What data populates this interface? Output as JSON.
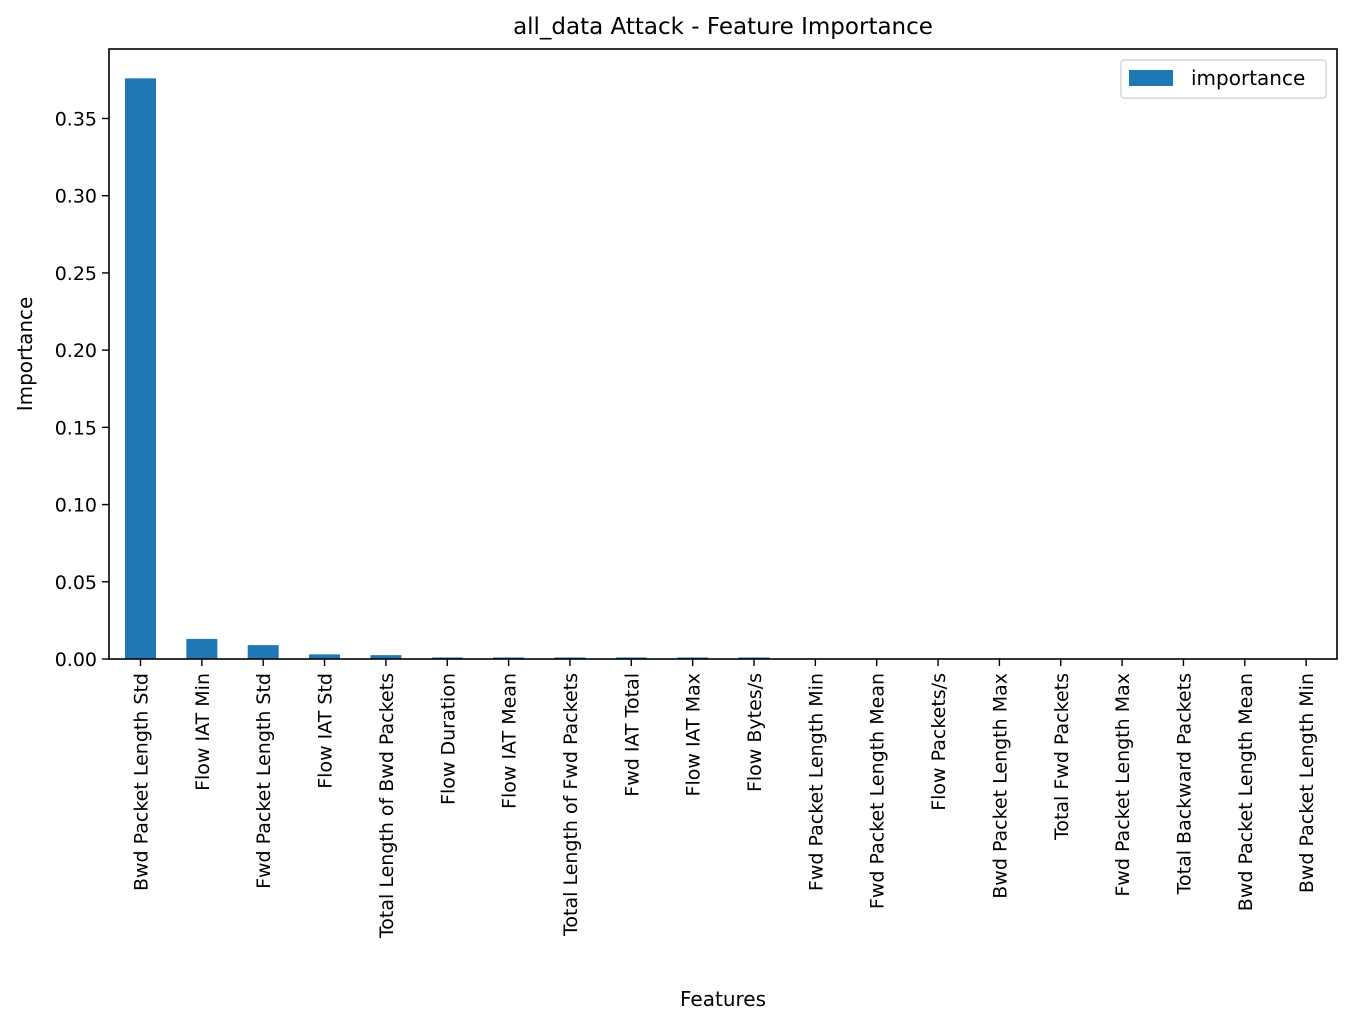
{
  "chart_data": {
    "type": "bar",
    "title": "all_data Attack - Feature Importance",
    "xlabel": "Features",
    "ylabel": "Importance",
    "ylim": [
      0,
      0.395
    ],
    "yticks": [
      0.0,
      0.05,
      0.1,
      0.15,
      0.2,
      0.25,
      0.3,
      0.35
    ],
    "ytick_labels": [
      "0.00",
      "0.05",
      "0.10",
      "0.15",
      "0.20",
      "0.25",
      "0.30",
      "0.35"
    ],
    "grid": false,
    "legend_position": "top-right",
    "bar_color": "#1f77b4",
    "categories": [
      "Bwd Packet Length Std",
      "Flow IAT Min",
      "Fwd Packet Length Std",
      "Flow IAT Std",
      "Total Length of Bwd Packets",
      "Flow Duration",
      "Flow IAT Mean",
      "Total Length of Fwd Packets",
      "Fwd IAT Total",
      "Flow IAT Max",
      "Flow Bytes/s",
      "Fwd Packet Length Min",
      "Fwd Packet Length Mean",
      "Flow Packets/s",
      "Bwd Packet Length Max",
      "Total Fwd Packets",
      "Fwd Packet Length Max",
      "Total Backward Packets",
      "Bwd Packet Length Mean",
      "Bwd Packet Length Min"
    ],
    "series": [
      {
        "name": "importance",
        "values": [
          0.376,
          0.013,
          0.009,
          0.003,
          0.0025,
          0.001,
          0.001,
          0.001,
          0.001,
          0.001,
          0.001,
          0,
          0,
          0,
          0,
          0,
          0,
          0,
          0,
          0
        ]
      }
    ]
  }
}
